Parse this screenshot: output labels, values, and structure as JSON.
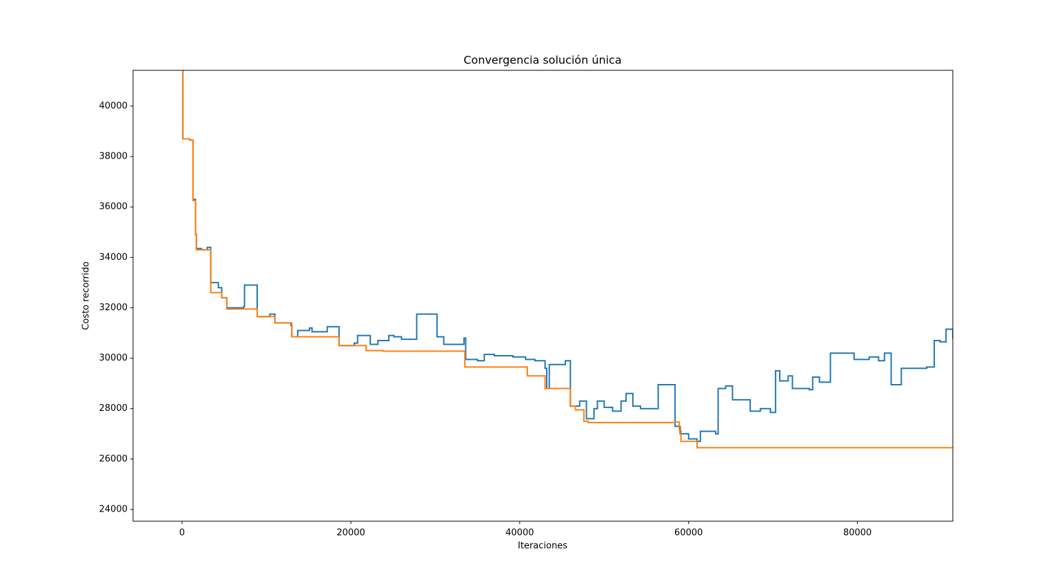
{
  "chart_data": {
    "type": "line",
    "drawstyle": "steps-post",
    "title": "Convergencia solución única",
    "x_label": "Iteraciones",
    "y_label": "Costo recorrido",
    "xlim": [
      -5800,
      91300
    ],
    "ylim": [
      23535,
      41420
    ],
    "xticks": [
      0,
      20000,
      40000,
      60000,
      80000
    ],
    "yticks": [
      24000,
      26000,
      28000,
      30000,
      32000,
      34000,
      36000,
      38000,
      40000
    ],
    "grid": false,
    "series": [
      {
        "color": "#1f77b4",
        "x": [
          0,
          100,
          900,
          1300,
          1600,
          1700,
          2300,
          3000,
          3400,
          4300,
          4700,
          5300,
          7300,
          7400,
          8900,
          10400,
          11000,
          12900,
          13000,
          13700,
          15100,
          15400,
          17200,
          18600,
          20400,
          20800,
          22300,
          23200,
          24500,
          25100,
          26000,
          27800,
          30200,
          31000,
          33400,
          33600,
          35000,
          35800,
          37000,
          39200,
          40700,
          41800,
          43000,
          43200,
          43500,
          45400,
          46000,
          47100,
          47900,
          48800,
          49200,
          50000,
          51000,
          52000,
          52600,
          53400,
          54300,
          55800,
          56400,
          58400,
          59000,
          60000,
          61000,
          61400,
          63200,
          63500,
          64400,
          65200,
          67300,
          68500,
          69700,
          70300,
          70800,
          71800,
          72300,
          74300,
          74700,
          75500,
          76800,
          79600,
          81400,
          82500,
          83200,
          84000,
          85200,
          88200,
          89100,
          89800,
          90500,
          91300
        ],
        "values": [
          44000,
          38700,
          38650,
          36300,
          34900,
          34350,
          34300,
          34400,
          33000,
          32800,
          32400,
          32000,
          32050,
          32900,
          31650,
          31750,
          31400,
          31300,
          30850,
          31100,
          31200,
          31050,
          31250,
          30500,
          30600,
          30900,
          30550,
          30700,
          30900,
          30850,
          30750,
          31750,
          30850,
          30550,
          30800,
          29950,
          29900,
          30150,
          30100,
          30050,
          29950,
          29900,
          29600,
          28800,
          29750,
          29900,
          28100,
          28300,
          27600,
          28000,
          28300,
          28050,
          27900,
          28300,
          28600,
          28100,
          28000,
          28000,
          28950,
          27300,
          27000,
          26800,
          26700,
          27100,
          27000,
          28800,
          28900,
          28350,
          27900,
          28000,
          27850,
          29500,
          29100,
          29300,
          28800,
          28750,
          29250,
          29050,
          30200,
          29950,
          30050,
          29900,
          30200,
          28950,
          29600,
          29650,
          30700,
          30650,
          31150,
          30750
        ]
      },
      {
        "color": "#ff7f0e",
        "x": [
          0,
          100,
          900,
          1300,
          1600,
          1700,
          3400,
          4700,
          5300,
          8900,
          11000,
          13000,
          18600,
          21800,
          23800,
          33500,
          40900,
          43000,
          46000,
          46600,
          47600,
          48100,
          58400,
          58900,
          59100,
          61000,
          91300
        ],
        "values": [
          44000,
          38700,
          38650,
          36250,
          34900,
          34300,
          32600,
          32400,
          31950,
          31650,
          31400,
          30850,
          30500,
          30300,
          30280,
          29650,
          29300,
          28800,
          28100,
          27950,
          27500,
          27450,
          27470,
          27140,
          26700,
          26450,
          26450
        ]
      }
    ]
  }
}
